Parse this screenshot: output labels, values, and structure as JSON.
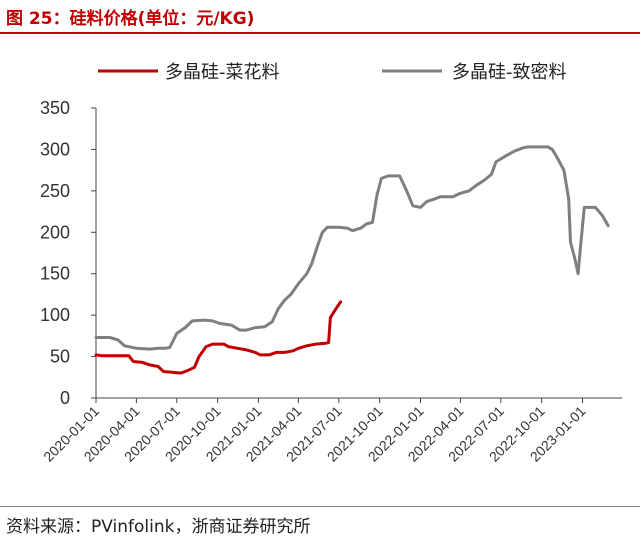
{
  "header": {
    "title": "图 25：硅料价格(单位：元/KG)"
  },
  "footer": {
    "source": "资料来源：PVinfolink，浙商证券研究所"
  },
  "chart_data": {
    "type": "line",
    "title": "图 25：硅料价格(单位：元/KG)",
    "xlabel": "",
    "ylabel": "",
    "ylim": [
      0,
      350
    ],
    "yticks": [
      "0",
      "50",
      "100",
      "150",
      "200",
      "250",
      "300",
      "350"
    ],
    "xticks": [
      "2020-01-01",
      "2020-04-01",
      "2020-07-01",
      "2020-10-01",
      "2021-01-01",
      "2021-04-01",
      "2021-07-01",
      "2021-10-01",
      "2022-01-01",
      "2022-04-01",
      "2022-07-01",
      "2022-10-01",
      "2023-01-01"
    ],
    "grid": false,
    "legend_position": "top",
    "series": [
      {
        "name": "多晶硅-菜花料",
        "color": "#c00000",
        "points": [
          [
            "2020-01-01",
            52
          ],
          [
            "2020-01-15",
            51
          ],
          [
            "2020-02-15",
            51
          ],
          [
            "2020-03-15",
            51
          ],
          [
            "2020-03-25",
            44
          ],
          [
            "2020-04-15",
            43
          ],
          [
            "2020-05-01",
            40
          ],
          [
            "2020-05-20",
            38
          ],
          [
            "2020-06-01",
            32
          ],
          [
            "2020-06-20",
            31
          ],
          [
            "2020-07-10",
            30
          ],
          [
            "2020-07-25",
            33
          ],
          [
            "2020-08-10",
            37
          ],
          [
            "2020-08-20",
            50
          ],
          [
            "2020-09-05",
            62
          ],
          [
            "2020-09-20",
            65
          ],
          [
            "2020-10-15",
            65
          ],
          [
            "2020-10-25",
            62
          ],
          [
            "2020-11-15",
            60
          ],
          [
            "2020-12-05",
            58
          ],
          [
            "2020-12-25",
            55
          ],
          [
            "2021-01-05",
            52
          ],
          [
            "2021-01-25",
            52
          ],
          [
            "2021-02-10",
            55
          ],
          [
            "2021-03-01",
            55
          ],
          [
            "2021-03-20",
            57
          ],
          [
            "2021-04-01",
            60
          ],
          [
            "2021-04-20",
            63
          ],
          [
            "2021-05-10",
            65
          ],
          [
            "2021-06-01",
            66
          ],
          [
            "2021-06-08",
            67
          ],
          [
            "2021-06-12",
            97
          ],
          [
            "2021-06-25",
            108
          ],
          [
            "2021-07-05",
            116
          ]
        ]
      },
      {
        "name": "多晶硅-致密料",
        "color": "#7f7f7f",
        "points": [
          [
            "2020-01-01",
            73
          ],
          [
            "2020-02-01",
            73
          ],
          [
            "2020-02-20",
            70
          ],
          [
            "2020-03-05",
            63
          ],
          [
            "2020-04-01",
            60
          ],
          [
            "2020-05-01",
            59
          ],
          [
            "2020-05-20",
            60
          ],
          [
            "2020-06-05",
            60
          ],
          [
            "2020-06-15",
            61
          ],
          [
            "2020-07-01",
            78
          ],
          [
            "2020-07-20",
            85
          ],
          [
            "2020-08-05",
            93
          ],
          [
            "2020-09-01",
            94
          ],
          [
            "2020-09-20",
            93
          ],
          [
            "2020-10-05",
            90
          ],
          [
            "2020-11-01",
            88
          ],
          [
            "2020-11-20",
            82
          ],
          [
            "2020-12-05",
            82
          ],
          [
            "2020-12-25",
            85
          ],
          [
            "2021-01-15",
            86
          ],
          [
            "2021-02-01",
            92
          ],
          [
            "2021-02-15",
            108
          ],
          [
            "2021-03-01",
            118
          ],
          [
            "2021-03-15",
            125
          ],
          [
            "2021-04-01",
            138
          ],
          [
            "2021-04-20",
            150
          ],
          [
            "2021-05-01",
            162
          ],
          [
            "2021-05-15",
            185
          ],
          [
            "2021-05-25",
            200
          ],
          [
            "2021-06-05",
            206
          ],
          [
            "2021-07-01",
            206
          ],
          [
            "2021-07-20",
            205
          ],
          [
            "2021-08-01",
            202
          ],
          [
            "2021-08-20",
            205
          ],
          [
            "2021-09-01",
            210
          ],
          [
            "2021-09-15",
            212
          ],
          [
            "2021-09-25",
            245
          ],
          [
            "2021-10-05",
            265
          ],
          [
            "2021-10-20",
            268
          ],
          [
            "2021-11-15",
            268
          ],
          [
            "2021-12-01",
            250
          ],
          [
            "2021-12-15",
            232
          ],
          [
            "2022-01-01",
            230
          ],
          [
            "2022-01-15",
            237
          ],
          [
            "2022-02-01",
            240
          ],
          [
            "2022-02-15",
            243
          ],
          [
            "2022-03-15",
            243
          ],
          [
            "2022-04-01",
            247
          ],
          [
            "2022-04-20",
            250
          ],
          [
            "2022-05-05",
            256
          ],
          [
            "2022-05-25",
            263
          ],
          [
            "2022-06-10",
            270
          ],
          [
            "2022-06-20",
            285
          ],
          [
            "2022-07-15",
            293
          ],
          [
            "2022-08-01",
            298
          ],
          [
            "2022-08-20",
            302
          ],
          [
            "2022-09-01",
            303
          ],
          [
            "2022-09-20",
            303
          ],
          [
            "2022-10-15",
            303
          ],
          [
            "2022-10-25",
            300
          ],
          [
            "2022-11-05",
            290
          ],
          [
            "2022-11-20",
            275
          ],
          [
            "2022-12-01",
            240
          ],
          [
            "2022-12-05",
            188
          ],
          [
            "2022-12-15",
            168
          ],
          [
            "2022-12-22",
            150
          ],
          [
            "2022-12-28",
            185
          ],
          [
            "2023-01-05",
            230
          ],
          [
            "2023-01-30",
            230
          ],
          [
            "2023-02-15",
            220
          ],
          [
            "2023-02-28",
            208
          ]
        ]
      }
    ]
  }
}
